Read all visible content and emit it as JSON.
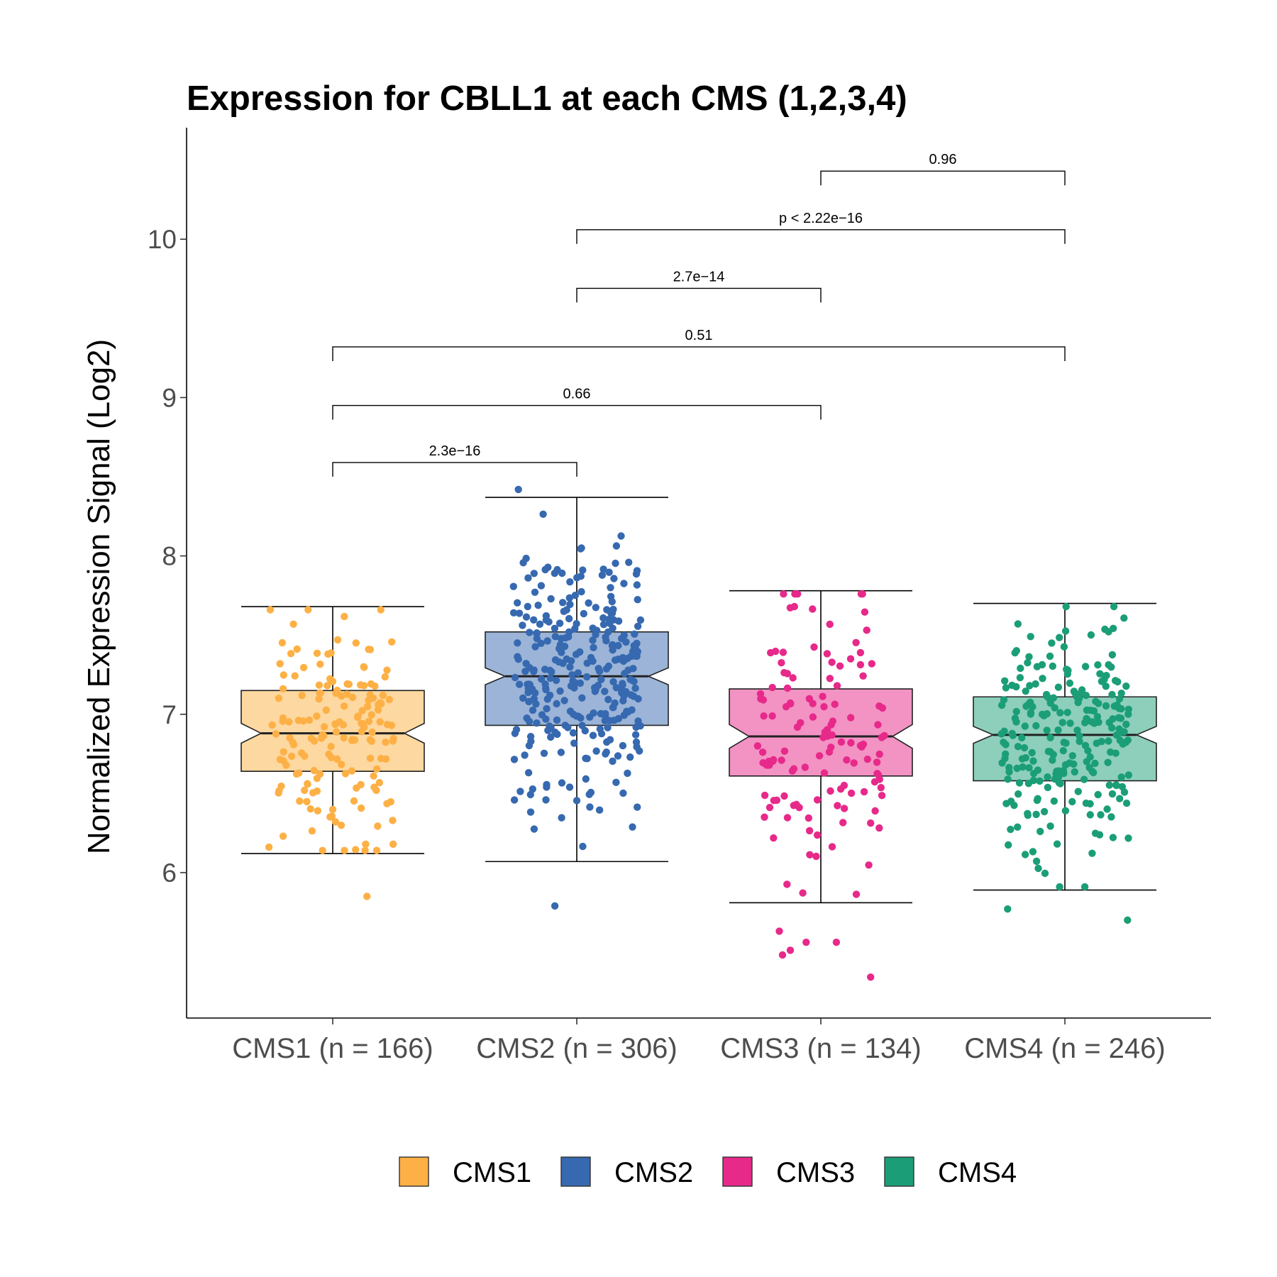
{
  "chart_data": {
    "type": "box",
    "title": "Expression for CBLL1 at each CMS (1,2,3,4)",
    "xlabel": "",
    "ylabel": "Normalized Expression Signal (Log2)",
    "ylim": [
      5.1,
      10.7
    ],
    "yticks": [
      6,
      7,
      8,
      9,
      10
    ],
    "notched": true,
    "jitter_points": true,
    "grid": false,
    "legend_position": "bottom",
    "categories": [
      "CMS1 (n = 166)",
      "CMS2 (n = 306)",
      "CMS3 (n = 134)",
      "CMS4 (n = 246)"
    ],
    "series": [
      {
        "name": "CMS1",
        "n": 166,
        "color": "#FDB045",
        "fill": "#FDD8A0",
        "whisker_low": 6.12,
        "q1": 6.64,
        "median": 6.88,
        "q3": 7.15,
        "whisker_high": 7.68,
        "outliers": [
          5.85
        ]
      },
      {
        "name": "CMS2",
        "n": 306,
        "color": "#3669B0",
        "fill": "#9BB4D7",
        "whisker_low": 6.07,
        "q1": 6.93,
        "median": 7.24,
        "q3": 7.52,
        "whisker_high": 8.37,
        "outliers": [
          5.79,
          8.42
        ]
      },
      {
        "name": "CMS3",
        "n": 134,
        "color": "#E7298A",
        "fill": "#F293C4",
        "whisker_low": 5.81,
        "q1": 6.61,
        "median": 6.86,
        "q3": 7.16,
        "whisker_high": 7.78,
        "outliers": [
          5.63,
          5.56,
          5.51,
          5.56,
          5.48,
          5.34
        ]
      },
      {
        "name": "CMS4",
        "n": 246,
        "color": "#1B9E77",
        "fill": "#8DCFBB",
        "whisker_low": 5.89,
        "q1": 6.58,
        "median": 6.87,
        "q3": 7.11,
        "whisker_high": 7.7,
        "outliers": [
          5.7,
          5.77
        ]
      }
    ],
    "comparisons": [
      {
        "groups": [
          1,
          2
        ],
        "label": "2.3e−16",
        "y": 8.59
      },
      {
        "groups": [
          1,
          3
        ],
        "label": "0.66",
        "y": 8.95
      },
      {
        "groups": [
          1,
          4
        ],
        "label": "0.51",
        "y": 9.32
      },
      {
        "groups": [
          2,
          3
        ],
        "label": "2.7e−14",
        "y": 9.69
      },
      {
        "groups": [
          2,
          4
        ],
        "label": "p < 2.22e−16",
        "y": 10.06
      },
      {
        "groups": [
          3,
          4
        ],
        "label": "0.96",
        "y": 10.43
      }
    ],
    "legend": [
      "CMS1",
      "CMS2",
      "CMS3",
      "CMS4"
    ]
  }
}
